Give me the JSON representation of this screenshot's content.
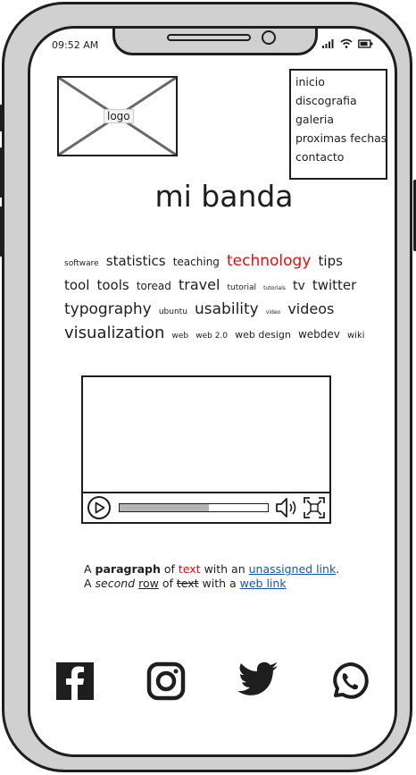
{
  "status": {
    "time": "09:52 AM"
  },
  "logo": {
    "label": "logo"
  },
  "nav": {
    "items": [
      "inicio",
      "discografia",
      "galeria",
      "proximas fechas",
      "contacto"
    ]
  },
  "title": "mi banda",
  "tag_cloud": [
    {
      "text": "software",
      "size": 9
    },
    {
      "text": "statistics",
      "size": 15
    },
    {
      "text": "teaching",
      "size": 12
    },
    {
      "text": "technology",
      "size": 17,
      "color": "#e01010"
    },
    {
      "text": "tips",
      "size": 15
    },
    {
      "text": "tool",
      "size": 15
    },
    {
      "text": "tools",
      "size": 15
    },
    {
      "text": "toread",
      "size": 12
    },
    {
      "text": "travel",
      "size": 16
    },
    {
      "text": "tutorial",
      "size": 9
    },
    {
      "text": "tutorials",
      "size": 6
    },
    {
      "text": "tv",
      "size": 14
    },
    {
      "text": "twitter",
      "size": 15
    },
    {
      "text": "typography",
      "size": 17
    },
    {
      "text": "ubuntu",
      "size": 9
    },
    {
      "text": "usability",
      "size": 17
    },
    {
      "text": "video",
      "size": 6
    },
    {
      "text": "videos",
      "size": 16
    },
    {
      "text": "visualization",
      "size": 18
    },
    {
      "text": "web",
      "size": 9
    },
    {
      "text": "web 2.0",
      "size": 9
    },
    {
      "text": "web design",
      "size": 11
    },
    {
      "text": "webdev",
      "size": 12
    },
    {
      "text": "wiki",
      "size": 10
    }
  ],
  "video": {
    "progress": 0.6
  },
  "paragraph": {
    "line1": {
      "a": "A ",
      "bold": "paragraph",
      "b": " of ",
      "red": "text",
      "c": " with an ",
      "link": "unassigned link",
      "d": "."
    },
    "line2": {
      "a": "A ",
      "italic": "second",
      "b": " ",
      "underline": "row",
      "c": " of ",
      "strike": "text",
      "d": " with a ",
      "link": "web link"
    }
  },
  "social": [
    "facebook-icon",
    "instagram-icon",
    "twitter-icon",
    "whatsapp-icon"
  ],
  "colors": {
    "accent": "#e01010",
    "link": "#1a56a6",
    "ink": "#1e1e1e"
  }
}
